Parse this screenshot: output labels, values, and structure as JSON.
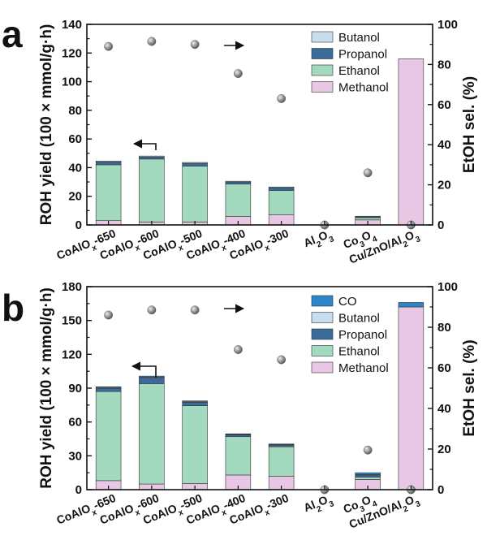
{
  "chart_data": [
    {
      "type": "bar",
      "stacked": true,
      "panel_label": "a",
      "categories": [
        "CoAlO$_x$-650",
        "CoAlO$_x$-600",
        "CoAlO$_x$-500",
        "CoAlO$_x$-400",
        "CoAlO$_x$-300",
        "Al$_2$O$_3$",
        "Co$_3$O$_4$",
        "Cu/ZnO/Al$_2$O$_3$"
      ],
      "ylabel": "ROH yield (100 × mmol/g·h)",
      "ylim": [
        0,
        140
      ],
      "yticks": [
        0,
        20,
        40,
        60,
        80,
        100,
        120,
        140
      ],
      "y2label": "EtOH sel. (%)",
      "y2lim": [
        0,
        100
      ],
      "y2ticks": [
        0,
        20,
        40,
        60,
        80,
        100
      ],
      "legend_position": "top-right",
      "series": [
        {
          "name": "Methanol",
          "color": "#e7c7e3",
          "values": [
            3,
            2,
            2,
            6,
            7,
            0,
            3.5,
            116
          ]
        },
        {
          "name": "Ethanol",
          "color": "#a3d9bf",
          "values": [
            39,
            44,
            39,
            22.5,
            17,
            0,
            1.5,
            0
          ]
        },
        {
          "name": "Propanol",
          "color": "#3a6b9a",
          "values": [
            2,
            1.5,
            2,
            1.5,
            2,
            0,
            0.7,
            0
          ]
        },
        {
          "name": "Butanol",
          "color": "#c7deef",
          "values": [
            0.6,
            0.6,
            0.6,
            0.5,
            0.5,
            0,
            0.4,
            0
          ]
        }
      ],
      "selectivity": {
        "axis": "right",
        "color": "#8a8a8a",
        "values": [
          89,
          91.5,
          90,
          75.5,
          63,
          0,
          26,
          0
        ]
      },
      "annotations": {
        "left_arrow_category": 1,
        "right_arrow_category": 2
      }
    },
    {
      "type": "bar",
      "stacked": true,
      "panel_label": "b",
      "categories": [
        "CoAlO$_x$-650",
        "CoAlO$_x$-600",
        "CoAlO$_x$-500",
        "CoAlO$_x$-400",
        "CoAlO$_x$-300",
        "Al$_2$O$_3$",
        "Co$_3$O$_4$",
        "Cu/ZnO/Al$_2$O$_3$"
      ],
      "ylabel": "ROH yield (100 × mmol/g·h)",
      "ylim": [
        0,
        180
      ],
      "yticks": [
        0,
        30,
        60,
        90,
        120,
        150,
        180
      ],
      "y2label": "EtOH sel. (%)",
      "y2lim": [
        0,
        100
      ],
      "y2ticks": [
        0,
        20,
        40,
        60,
        80,
        100
      ],
      "legend_position": "top-right",
      "series": [
        {
          "name": "Methanol",
          "color": "#e7c7e3",
          "values": [
            8,
            5,
            5.5,
            13,
            12,
            0,
            9,
            162
          ]
        },
        {
          "name": "Ethanol",
          "color": "#a3d9bf",
          "values": [
            79,
            89,
            69,
            34,
            26,
            0,
            2,
            0
          ]
        },
        {
          "name": "Propanol",
          "color": "#3a6b9a",
          "values": [
            3,
            5,
            3,
            1.5,
            1.5,
            0,
            2,
            0
          ]
        },
        {
          "name": "Butanol",
          "color": "#c7deef",
          "values": [
            0.7,
            0.7,
            0.7,
            0.5,
            0.5,
            0,
            0.5,
            0
          ]
        },
        {
          "name": "CO",
          "color": "#2e86c8",
          "values": [
            0.5,
            1,
            0.5,
            0.5,
            0.5,
            0,
            1.5,
            4
          ]
        }
      ],
      "selectivity": {
        "axis": "right",
        "color": "#8a8a8a",
        "values": [
          86,
          88.5,
          88.5,
          69,
          64,
          0,
          19.5,
          0
        ]
      },
      "annotations": {
        "left_arrow_category": 1,
        "right_arrow_category": 2
      }
    }
  ]
}
